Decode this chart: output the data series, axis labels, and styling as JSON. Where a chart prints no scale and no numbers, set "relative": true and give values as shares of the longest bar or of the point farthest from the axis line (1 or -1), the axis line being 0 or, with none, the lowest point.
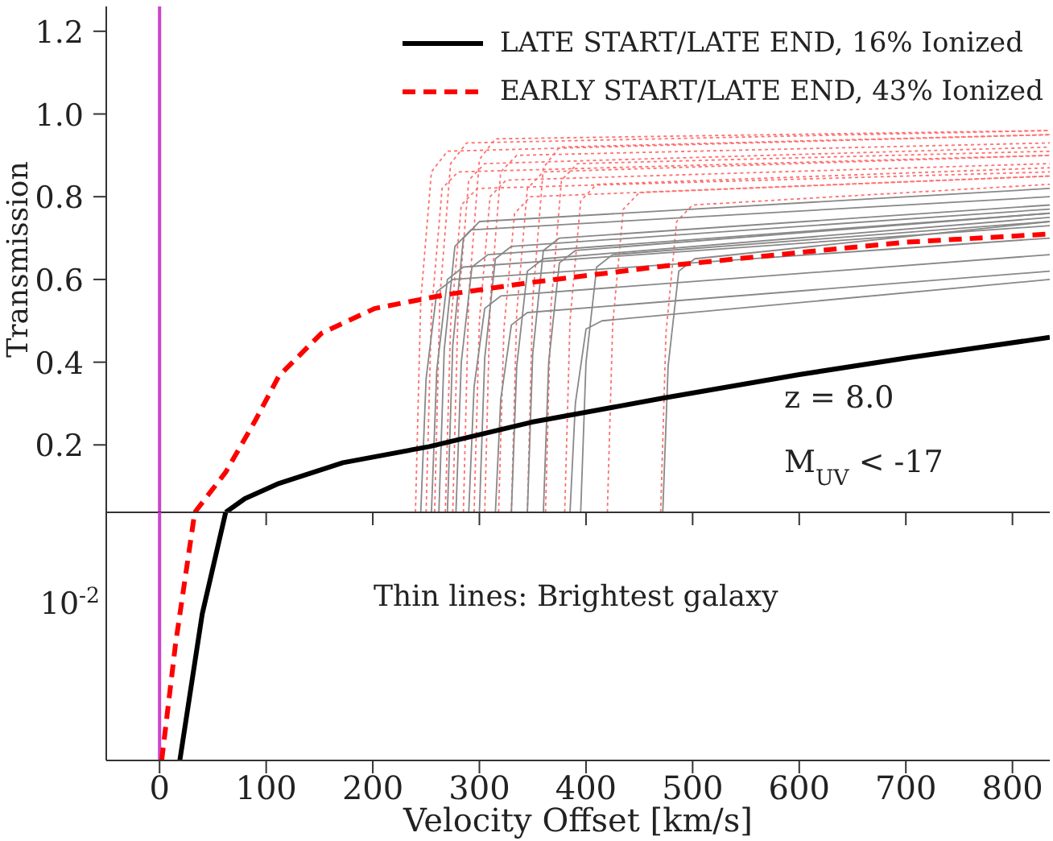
{
  "chart_data": [
    {
      "type": "line",
      "ylabel": "Transmission",
      "xlim": [
        -50,
        835
      ],
      "xticks": [
        0,
        100,
        200,
        300,
        400,
        500,
        600,
        700,
        800
      ],
      "ylim": [
        0.037,
        1.26
      ],
      "yticks": [
        0.2,
        0.4,
        0.6,
        0.8,
        {
          "value": 1,
          "label": "1.0"
        },
        1.2
      ],
      "tick_labels": "y",
      "grid": false,
      "legend": "top right",
      "annotations": [
        "z = 8.0",
        "M$_{UV}$ < -17"
      ],
      "ref_lines": [
        {
          "axis": "x",
          "value": 0,
          "color": "#cc44cc"
        }
      ],
      "series": [
        {
          "name": "LATE START/LATE END, 16% Ionized",
          "color": "#000000",
          "line_style": "solid",
          "x": [
            62,
            80,
            112,
            172,
            253,
            349,
            472,
            600,
            700,
            835
          ],
          "values": [
            0.037,
            0.07,
            0.107,
            0.157,
            0.196,
            0.255,
            0.313,
            0.37,
            0.41,
            0.46
          ]
        },
        {
          "name": "EARLY START/LATE END, 43% Ionized",
          "color": "#ff0000",
          "line_style": "dashed",
          "x": [
            33,
            62,
            90,
            112,
            152,
            202,
            268,
            349,
            472,
            600,
            700,
            835
          ],
          "values": [
            0.037,
            0.134,
            0.26,
            0.367,
            0.47,
            0.53,
            0.563,
            0.593,
            0.632,
            0.665,
            0.69,
            0.71
          ]
        },
        {
          "color": "#888888",
          "line_style": "solid",
          "x": [
            245,
            250,
            260,
            275,
            835
          ],
          "values": [
            0.037,
            0.36,
            0.57,
            0.6,
            0.7
          ]
        },
        {
          "color": "#888888",
          "line_style": "solid",
          "x": [
            255,
            260,
            270,
            285,
            835
          ],
          "values": [
            0.037,
            0.38,
            0.6,
            0.63,
            0.73
          ]
        },
        {
          "color": "#888888",
          "line_style": "solid",
          "x": [
            262,
            267,
            277,
            292,
            835
          ],
          "values": [
            0.037,
            0.43,
            0.68,
            0.72,
            0.8
          ]
        },
        {
          "color": "#888888",
          "line_style": "solid",
          "x": [
            270,
            275,
            285,
            300,
            835
          ],
          "values": [
            0.037,
            0.44,
            0.7,
            0.74,
            0.82
          ]
        },
        {
          "color": "#888888",
          "line_style": "solid",
          "x": [
            278,
            283,
            293,
            308,
            835
          ],
          "values": [
            0.037,
            0.4,
            0.63,
            0.66,
            0.76
          ]
        },
        {
          "color": "#888888",
          "line_style": "solid",
          "x": [
            290,
            295,
            305,
            320,
            835
          ],
          "values": [
            0.037,
            0.34,
            0.53,
            0.56,
            0.66
          ]
        },
        {
          "color": "#888888",
          "line_style": "solid",
          "x": [
            300,
            305,
            315,
            330,
            835
          ],
          "values": [
            0.037,
            0.41,
            0.65,
            0.68,
            0.77
          ]
        },
        {
          "color": "#888888",
          "line_style": "solid",
          "x": [
            315,
            320,
            330,
            345,
            835
          ],
          "values": [
            0.037,
            0.31,
            0.49,
            0.52,
            0.62
          ]
        },
        {
          "color": "#888888",
          "line_style": "solid",
          "x": [
            330,
            335,
            345,
            360,
            835
          ],
          "values": [
            0.037,
            0.39,
            0.62,
            0.65,
            0.75
          ]
        },
        {
          "color": "#888888",
          "line_style": "solid",
          "x": [
            345,
            350,
            360,
            375,
            835
          ],
          "values": [
            0.037,
            0.42,
            0.67,
            0.7,
            0.78
          ]
        },
        {
          "color": "#888888",
          "line_style": "solid",
          "x": [
            360,
            365,
            375,
            390,
            835
          ],
          "values": [
            0.037,
            0.4,
            0.64,
            0.67,
            0.76
          ]
        },
        {
          "color": "#888888",
          "line_style": "solid",
          "x": [
            385,
            390,
            400,
            415,
            835
          ],
          "values": [
            0.037,
            0.3,
            0.48,
            0.5,
            0.6
          ]
        },
        {
          "color": "#888888",
          "line_style": "solid",
          "x": [
            395,
            400,
            410,
            425,
            835
          ],
          "values": [
            0.037,
            0.4,
            0.63,
            0.66,
            0.74
          ]
        },
        {
          "color": "#888888",
          "line_style": "solid",
          "x": [
            472,
            477,
            487,
            502,
            835
          ],
          "values": [
            0.037,
            0.39,
            0.62,
            0.65,
            0.74
          ]
        },
        {
          "color": "#ff7070",
          "line_style": "dotted",
          "x": [
            240,
            245,
            255,
            270,
            835
          ],
          "values": [
            0.037,
            0.55,
            0.86,
            0.91,
            0.95
          ]
        },
        {
          "color": "#ff7070",
          "line_style": "dotted",
          "x": [
            250,
            255,
            265,
            280,
            835
          ],
          "values": [
            0.037,
            0.52,
            0.82,
            0.86,
            0.9
          ]
        },
        {
          "color": "#ff7070",
          "line_style": "dotted",
          "x": [
            258,
            263,
            273,
            288,
            835
          ],
          "values": [
            0.037,
            0.56,
            0.88,
            0.93,
            0.96
          ]
        },
        {
          "color": "#ff7070",
          "line_style": "dotted",
          "x": [
            268,
            273,
            283,
            298,
            835
          ],
          "values": [
            0.037,
            0.49,
            0.78,
            0.82,
            0.86
          ]
        },
        {
          "color": "#ff7070",
          "line_style": "dotted",
          "x": [
            275,
            280,
            290,
            305,
            835
          ],
          "values": [
            0.037,
            0.53,
            0.84,
            0.88,
            0.92
          ]
        },
        {
          "color": "#ff7070",
          "line_style": "dotted",
          "x": [
            285,
            290,
            300,
            315,
            835
          ],
          "values": [
            0.037,
            0.56,
            0.89,
            0.94,
            0.96
          ]
        },
        {
          "color": "#ff7070",
          "line_style": "dotted",
          "x": [
            295,
            300,
            310,
            325,
            835
          ],
          "values": [
            0.037,
            0.5,
            0.8,
            0.84,
            0.88
          ]
        },
        {
          "color": "#ff7070",
          "line_style": "dotted",
          "x": [
            305,
            310,
            320,
            335,
            835
          ],
          "values": [
            0.037,
            0.54,
            0.86,
            0.9,
            0.93
          ]
        },
        {
          "color": "#ff7070",
          "line_style": "dotted",
          "x": [
            318,
            323,
            333,
            348,
            835
          ],
          "values": [
            0.037,
            0.48,
            0.76,
            0.8,
            0.85
          ]
        },
        {
          "color": "#ff7070",
          "line_style": "dotted",
          "x": [
            330,
            335,
            345,
            360,
            835
          ],
          "values": [
            0.037,
            0.52,
            0.82,
            0.86,
            0.9
          ]
        },
        {
          "color": "#ff7070",
          "line_style": "dotted",
          "x": [
            345,
            350,
            360,
            375,
            835
          ],
          "values": [
            0.037,
            0.55,
            0.87,
            0.92,
            0.95
          ]
        },
        {
          "color": "#ff7070",
          "line_style": "dotted",
          "x": [
            362,
            367,
            377,
            392,
            835
          ],
          "values": [
            0.037,
            0.53,
            0.84,
            0.88,
            0.91
          ]
        },
        {
          "color": "#ff7070",
          "line_style": "dotted",
          "x": [
            380,
            385,
            395,
            410,
            835
          ],
          "values": [
            0.037,
            0.5,
            0.79,
            0.83,
            0.87
          ]
        },
        {
          "color": "#ff7070",
          "line_style": "dotted",
          "x": [
            420,
            425,
            435,
            450,
            835
          ],
          "values": [
            0.037,
            0.49,
            0.77,
            0.81,
            0.85
          ]
        },
        {
          "color": "#ff7070",
          "line_style": "dotted",
          "x": [
            470,
            475,
            485,
            500,
            835
          ],
          "values": [
            0.037,
            0.47,
            0.74,
            0.78,
            0.83
          ]
        }
      ]
    },
    {
      "type": "line",
      "xlabel": "Velocity Offset [km/s]",
      "xlim": [
        -50,
        835
      ],
      "xticks": [
        0,
        100,
        200,
        300,
        400,
        500,
        600,
        700,
        800
      ],
      "relative": true,
      "grid": false,
      "annotations": [
        "Thin lines: Brightest galaxy",
        "10$^{-2}$"
      ],
      "ref_lines": [
        {
          "axis": "x",
          "value": 0,
          "color": "#cc44cc"
        }
      ],
      "series": [
        {
          "color": "#000000",
          "line_style": "solid",
          "x": [
            19,
            40,
            62
          ],
          "values": [
            0,
            0.59,
            1
          ]
        },
        {
          "color": "#ff0000",
          "line_style": "dashed",
          "x": [
            2,
            15,
            33
          ],
          "values": [
            0,
            0.47,
            1
          ]
        }
      ]
    }
  ]
}
